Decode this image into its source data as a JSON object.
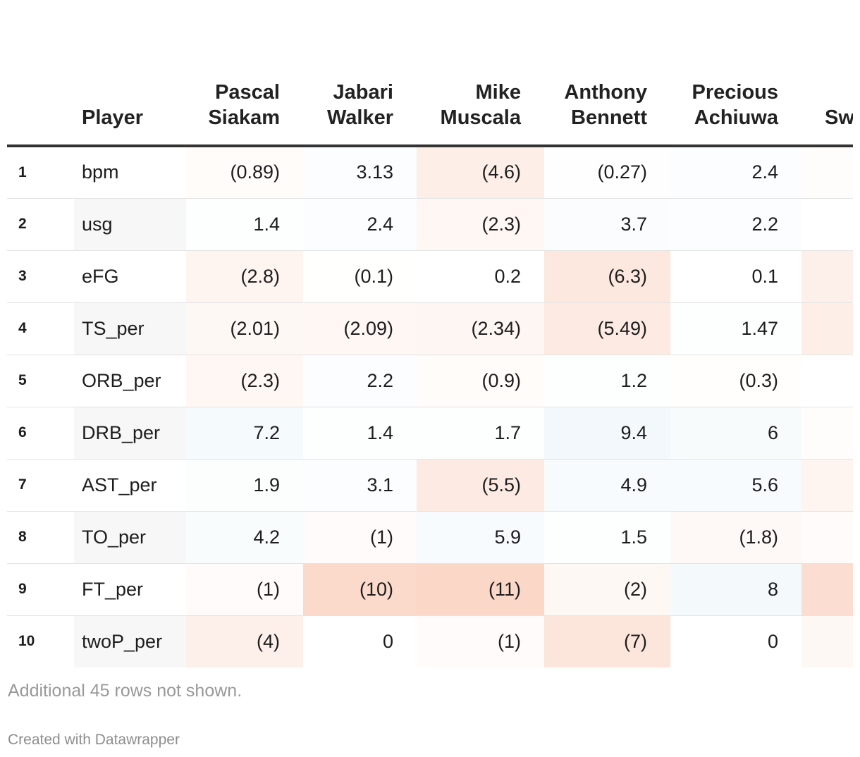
{
  "chart_data": {
    "type": "table",
    "row_header": "Player",
    "columns": [
      "Pascal Siakam",
      "Jabari Walker",
      "Mike Muscala",
      "Anthony Bennett",
      "Precious Achiuwa",
      "Sw"
    ],
    "rows": [
      {
        "rank": "1",
        "metric": "bpm",
        "display": [
          "(0.89)",
          "3.13",
          "(4.6)",
          "(0.27)",
          "2.4",
          ""
        ],
        "values": [
          -0.89,
          3.13,
          -4.6,
          -0.27,
          2.4,
          -0.5
        ]
      },
      {
        "rank": "2",
        "metric": "usg",
        "display": [
          "1.4",
          "2.4",
          "(2.3)",
          "3.7",
          "2.2",
          ""
        ],
        "values": [
          1.4,
          2.4,
          -2.3,
          3.7,
          2.2,
          0
        ]
      },
      {
        "rank": "3",
        "metric": "eFG",
        "display": [
          "(2.8)",
          "(0.1)",
          "0.2",
          "(6.3)",
          "0.1",
          ""
        ],
        "values": [
          -2.8,
          -0.1,
          0.2,
          -6.3,
          0.1,
          -4
        ]
      },
      {
        "rank": "4",
        "metric": "TS_per",
        "display": [
          "(2.01)",
          "(2.09)",
          "(2.34)",
          "(5.49)",
          "1.47",
          ""
        ],
        "values": [
          -2.01,
          -2.09,
          -2.34,
          -5.49,
          1.47,
          -4.5
        ]
      },
      {
        "rank": "5",
        "metric": "ORB_per",
        "display": [
          "(2.3)",
          "2.2",
          "(0.9)",
          "1.2",
          "(0.3)",
          ""
        ],
        "values": [
          -2.3,
          2.2,
          -0.9,
          1.2,
          -0.3,
          0
        ]
      },
      {
        "rank": "6",
        "metric": "DRB_per",
        "display": [
          "7.2",
          "1.4",
          "1.7",
          "9.4",
          "6",
          ""
        ],
        "values": [
          7.2,
          1.4,
          1.7,
          9.4,
          6,
          -0.5
        ]
      },
      {
        "rank": "7",
        "metric": "AST_per",
        "display": [
          "1.9",
          "3.1",
          "(5.5)",
          "4.9",
          "5.6",
          ""
        ],
        "values": [
          1.9,
          3.1,
          -5.5,
          4.9,
          5.6,
          -3
        ]
      },
      {
        "rank": "8",
        "metric": "TO_per",
        "display": [
          "4.2",
          "(1)",
          "5.9",
          "1.5",
          "(1.8)",
          ""
        ],
        "values": [
          4.2,
          -1,
          5.9,
          1.5,
          -1.8,
          -1
        ]
      },
      {
        "rank": "9",
        "metric": "FT_per",
        "display": [
          "(1)",
          "(10)",
          "(11)",
          "(2)",
          "8",
          ""
        ],
        "values": [
          -1,
          -10,
          -11,
          -2,
          8,
          -9
        ]
      },
      {
        "rank": "10",
        "metric": "twoP_per",
        "display": [
          "(4)",
          "0",
          "(1)",
          "(7)",
          "0",
          ""
        ],
        "values": [
          -4,
          0,
          -1,
          -7,
          0,
          -2
        ]
      }
    ],
    "color_scale": {
      "negative": "#f4a582",
      "positive": "#92c5de",
      "neutral": "#ffffff",
      "max_abs_negative": 11,
      "max_abs_positive": 9.4
    }
  },
  "footnote": "Additional 45 rows not shown.",
  "credit": "Created with Datawrapper"
}
